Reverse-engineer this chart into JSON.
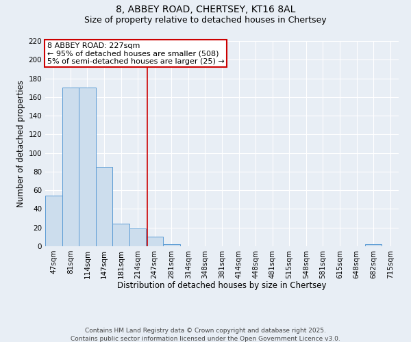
{
  "title_line1": "8, ABBEY ROAD, CHERTSEY, KT16 8AL",
  "title_line2": "Size of property relative to detached houses in Chertsey",
  "bar_labels": [
    "47sqm",
    "81sqm",
    "114sqm",
    "147sqm",
    "181sqm",
    "214sqm",
    "247sqm",
    "281sqm",
    "314sqm",
    "348sqm",
    "381sqm",
    "414sqm",
    "448sqm",
    "481sqm",
    "515sqm",
    "548sqm",
    "581sqm",
    "615sqm",
    "648sqm",
    "682sqm",
    "715sqm"
  ],
  "bar_values": [
    54,
    170,
    170,
    85,
    24,
    19,
    10,
    2,
    0,
    0,
    0,
    0,
    0,
    0,
    0,
    0,
    0,
    0,
    0,
    2,
    0
  ],
  "bar_color": "#ccdded",
  "bar_edge_color": "#5b9bd5",
  "bar_width": 1.0,
  "red_line_x": 5.545,
  "annotation_text": "8 ABBEY ROAD: 227sqm\n← 95% of detached houses are smaller (508)\n5% of semi-detached houses are larger (25) →",
  "annotation_box_color": "#ffffff",
  "annotation_box_edge_color": "#cc0000",
  "xlabel": "Distribution of detached houses by size in Chertsey",
  "ylabel": "Number of detached properties",
  "ylim": [
    0,
    220
  ],
  "yticks": [
    0,
    20,
    40,
    60,
    80,
    100,
    120,
    140,
    160,
    180,
    200,
    220
  ],
  "footer_line1": "Contains HM Land Registry data © Crown copyright and database right 2025.",
  "footer_line2": "Contains public sector information licensed under the Open Government Licence v3.0.",
  "background_color": "#e8eef5",
  "plot_bg_color": "#e8eef5",
  "grid_color": "#ffffff",
  "title_fontsize": 10,
  "subtitle_fontsize": 9,
  "axis_label_fontsize": 8.5,
  "tick_fontsize": 7.5,
  "annotation_fontsize": 8,
  "footer_fontsize": 6.5
}
